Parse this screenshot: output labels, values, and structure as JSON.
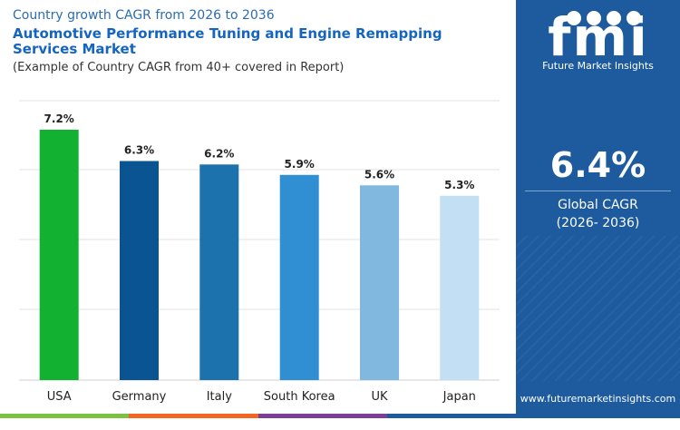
{
  "header": {
    "subtitle": "Country growth CAGR from 2026 to 2036",
    "title": "Automotive Performance Tuning and Engine Remapping Services Market",
    "note": "(Example of Country CAGR from 40+ covered in Report)"
  },
  "chart_data": {
    "type": "bar",
    "categories": [
      "USA",
      "Germany",
      "Italy",
      "South Korea",
      "UK",
      "Japan"
    ],
    "values": [
      7.2,
      6.3,
      6.2,
      5.9,
      5.6,
      5.3
    ],
    "value_labels": [
      "7.2%",
      "6.3%",
      "6.2%",
      "5.9%",
      "5.6%",
      "5.3%"
    ],
    "colors": [
      "#12b131",
      "#0a5591",
      "#1b72ad",
      "#2f8fd2",
      "#80b8e0",
      "#c3dff3"
    ],
    "ylim": [
      0,
      7.2
    ],
    "grid": true,
    "legend": "none"
  },
  "sidebar": {
    "logo_text": "fmi",
    "logo_caption": "Future Market Insights",
    "global_value": "6.4%",
    "global_label": "Global CAGR",
    "global_period": "(2026- 2036)",
    "website": "www.futuremarketinsights.com",
    "background_color": "#1d5a9e"
  },
  "footer_colors": [
    "#7cc242",
    "#f26522",
    "#7b3f98",
    "#1d5a9e"
  ]
}
